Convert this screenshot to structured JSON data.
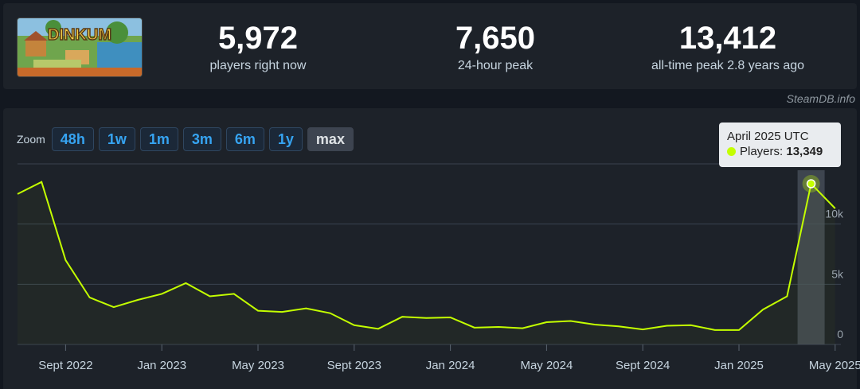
{
  "header": {
    "game_logo_text": "DINKUM",
    "stats": [
      {
        "value": "5,972",
        "label": "players right now"
      },
      {
        "value": "7,650",
        "label": "24-hour peak"
      },
      {
        "value": "13,412",
        "label": "all-time peak 2.8 years ago"
      }
    ]
  },
  "attribution": "SteamDB.info",
  "zoom": {
    "label": "Zoom",
    "options": [
      "48h",
      "1w",
      "1m",
      "3m",
      "6m",
      "1y",
      "max"
    ],
    "active": "max"
  },
  "tooltip": {
    "title": "April 2025 UTC",
    "series_label": "Players:",
    "value": "13,349"
  },
  "colors": {
    "line": "#c4ff00",
    "background": "#1d2229",
    "zoom_text": "#36a4f2"
  },
  "chart_data": {
    "type": "line",
    "x_tick_labels": [
      "Sept 2022",
      "Jan 2023",
      "May 2023",
      "Sept 2023",
      "Jan 2024",
      "May 2024",
      "Sept 2024",
      "Jan 2025",
      "May 2025"
    ],
    "y_tick_labels": [
      "0",
      "5k",
      "10k"
    ],
    "ylim": [
      0,
      15000
    ],
    "grid": true,
    "series": [
      {
        "name": "Players",
        "x": [
          "2022-07",
          "2022-08",
          "2022-09",
          "2022-10",
          "2022-11",
          "2022-12",
          "2023-01",
          "2023-02",
          "2023-03",
          "2023-04",
          "2023-05",
          "2023-06",
          "2023-07",
          "2023-08",
          "2023-09",
          "2023-10",
          "2023-11",
          "2023-12",
          "2024-01",
          "2024-02",
          "2024-03",
          "2024-04",
          "2024-05",
          "2024-06",
          "2024-07",
          "2024-08",
          "2024-09",
          "2024-10",
          "2024-11",
          "2024-12",
          "2025-01",
          "2025-02",
          "2025-03",
          "2025-04",
          "2025-05"
        ],
        "values": [
          12500,
          13500,
          7000,
          3900,
          3100,
          3700,
          4200,
          5100,
          4000,
          4200,
          2800,
          2700,
          3000,
          2600,
          1600,
          1300,
          2300,
          2200,
          2250,
          1400,
          1450,
          1350,
          1850,
          1950,
          1650,
          1500,
          1250,
          1550,
          1600,
          1200,
          1200,
          2900,
          4000,
          13349,
          11300
        ]
      }
    ]
  }
}
